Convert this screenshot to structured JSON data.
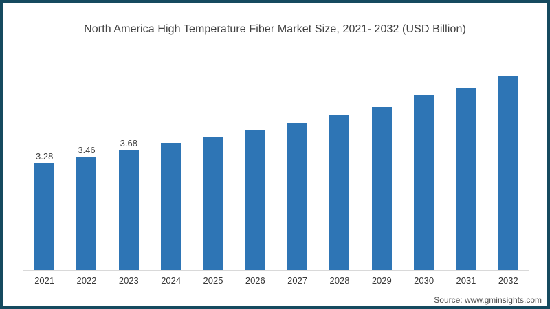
{
  "frame": {
    "border_color": "#154a5f",
    "background": "#ffffff"
  },
  "chart_data": {
    "type": "bar",
    "title": "North America High Temperature Fiber Market Size, 2021- 2032 (USD Billion)",
    "categories": [
      "2021",
      "2022",
      "2023",
      "2024",
      "2025",
      "2026",
      "2027",
      "2028",
      "2029",
      "2030",
      "2031",
      "2032"
    ],
    "values": [
      3.28,
      3.46,
      3.68,
      3.92,
      4.08,
      4.31,
      4.53,
      4.76,
      5.01,
      5.36,
      5.61,
      5.96
    ],
    "data_labels": [
      "3.28",
      "3.46",
      "3.68",
      "",
      "",
      "",
      "",
      "",
      "",
      "",
      "",
      ""
    ],
    "xlabel": "",
    "ylabel": "",
    "bar_color": "#2e75b5",
    "axis_line_color": "#d9d9d9",
    "y_axis_visible": false,
    "gridlines": false,
    "legend": false,
    "ylim": [
      0,
      6.2
    ]
  },
  "source": {
    "label": "Source: www.gminsights.com"
  }
}
